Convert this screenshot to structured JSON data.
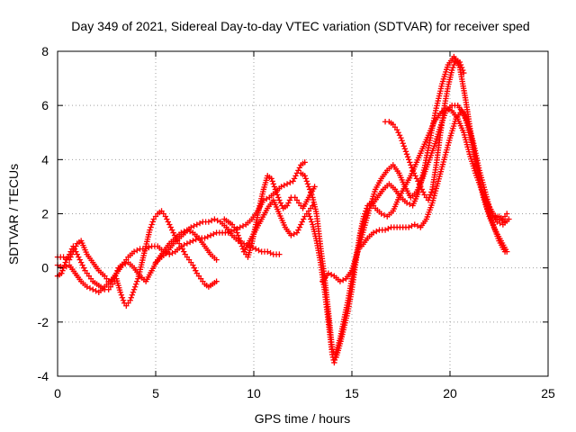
{
  "chart_data": {
    "type": "scatter",
    "title": "Day 349 of 2021, Sidereal Day-to-day VTEC variation (SDTVAR) for receiver sped",
    "xlabel": "GPS time / hours",
    "ylabel": "SDTVAR / TECUs",
    "xlim": [
      0,
      25
    ],
    "ylim": [
      -4,
      8
    ],
    "xticks": [
      0,
      5,
      10,
      15,
      20,
      25
    ],
    "yticks": [
      -4,
      -2,
      0,
      2,
      4,
      6,
      8
    ],
    "grid": true,
    "marker": "plus",
    "color": "#ff0000",
    "series": [
      {
        "x": [
          0.0,
          0.3,
          0.6,
          0.8,
          1.0,
          1.2,
          1.5,
          1.8,
          2.1,
          2.4,
          2.6,
          2.9,
          3.1,
          3.4,
          3.6,
          3.9,
          4.2,
          4.5,
          4.8,
          5.1,
          5.4,
          5.7,
          6.0,
          6.3,
          6.6,
          6.9,
          7.2,
          7.5,
          7.8,
          8.1,
          8.4,
          8.7,
          9.0,
          9.3,
          9.6,
          9.9,
          10.2,
          10.5,
          10.8,
          11.1,
          11.4,
          11.7,
          12.0,
          12.2,
          12.4,
          12.6
        ],
        "y": [
          0.4,
          0.4,
          0.3,
          0.6,
          0.9,
          1.0,
          0.5,
          0.2,
          -0.1,
          -0.3,
          -0.5,
          -0.4,
          0.0,
          0.2,
          0.4,
          0.6,
          0.7,
          0.7,
          0.8,
          0.8,
          0.6,
          0.5,
          0.6,
          0.8,
          0.9,
          1.0,
          1.1,
          1.1,
          1.2,
          1.3,
          1.3,
          1.3,
          1.4,
          1.5,
          1.6,
          1.8,
          2.1,
          2.5,
          2.6,
          2.8,
          3.0,
          3.1,
          3.2,
          3.5,
          3.8,
          3.9
        ]
      },
      {
        "x": [
          0.0,
          0.2,
          0.4,
          0.6,
          0.8,
          1.0,
          1.2,
          1.4,
          1.6,
          1.8,
          2.0,
          2.2,
          2.4,
          2.6,
          2.8,
          3.0,
          3.2,
          3.4,
          3.5,
          3.7,
          3.9,
          4.1,
          4.3,
          4.5,
          4.7,
          4.9,
          5.1,
          5.3,
          5.5,
          5.7,
          5.9,
          6.1,
          6.3,
          6.5,
          6.7,
          6.9,
          7.1,
          7.3,
          7.5,
          7.7,
          7.9,
          8.1
        ],
        "y": [
          -0.3,
          -0.2,
          0.2,
          0.5,
          0.8,
          0.5,
          0.2,
          -0.1,
          -0.3,
          -0.5,
          -0.6,
          -0.7,
          -0.8,
          -0.8,
          -0.6,
          -0.4,
          -0.9,
          -1.3,
          -1.4,
          -1.2,
          -0.8,
          -0.4,
          0.2,
          0.8,
          1.4,
          1.8,
          2.0,
          2.1,
          1.9,
          1.6,
          1.3,
          1.0,
          0.8,
          0.5,
          0.3,
          0.1,
          -0.2,
          -0.4,
          -0.6,
          -0.7,
          -0.6,
          -0.5
        ]
      },
      {
        "x": [
          0.0,
          0.3,
          0.6,
          0.9,
          1.2,
          1.5,
          1.8,
          2.1,
          2.4,
          2.7,
          3.0,
          3.3,
          3.6,
          3.9,
          4.2,
          4.5,
          4.8,
          5.1,
          5.4,
          5.7,
          6.0,
          6.3,
          6.6,
          6.9,
          7.2,
          7.5,
          7.8,
          8.1
        ],
        "y": [
          0.1,
          0.0,
          0.1,
          -0.2,
          -0.5,
          -0.7,
          -0.8,
          -0.9,
          -0.7,
          -0.5,
          -0.2,
          0.1,
          0.2,
          0.0,
          -0.3,
          -0.5,
          -0.1,
          0.3,
          0.6,
          0.9,
          1.1,
          1.3,
          1.4,
          1.3,
          1.1,
          0.8,
          0.5,
          0.3
        ]
      },
      {
        "x": [
          5.0,
          5.3,
          5.6,
          5.9,
          6.2,
          6.5,
          6.8,
          7.1,
          7.4,
          7.7,
          8.0,
          8.3,
          8.6,
          8.9,
          9.2,
          9.5,
          9.8,
          10.1,
          10.4,
          10.7,
          11.0,
          11.3
        ],
        "y": [
          0.2,
          0.4,
          0.6,
          0.9,
          1.1,
          1.3,
          1.5,
          1.6,
          1.7,
          1.7,
          1.8,
          1.7,
          1.5,
          1.2,
          1.0,
          0.9,
          0.8,
          0.7,
          0.6,
          0.6,
          0.5,
          0.5
        ]
      },
      {
        "x": [
          8.5,
          8.7,
          8.9,
          9.1,
          9.3,
          9.5,
          9.7,
          9.9,
          10.1,
          10.3,
          10.5,
          10.7,
          10.9,
          11.1,
          11.3,
          11.5,
          11.7,
          11.9,
          12.1,
          12.3,
          12.5,
          12.8,
          13.1
        ],
        "y": [
          1.8,
          1.7,
          1.6,
          1.4,
          1.0,
          0.6,
          0.4,
          0.9,
          1.6,
          2.3,
          2.9,
          3.4,
          3.3,
          2.9,
          2.5,
          2.2,
          2.3,
          2.6,
          2.6,
          2.4,
          2.2,
          2.6,
          3.0
        ]
      },
      {
        "x": [
          9.5,
          9.8,
          10.1,
          10.4,
          10.7,
          11.0,
          11.3,
          11.6,
          11.9,
          12.2,
          12.4,
          12.6,
          12.8,
          13.0
        ],
        "y": [
          0.6,
          1.0,
          1.4,
          1.8,
          2.2,
          2.5,
          2.0,
          1.5,
          1.2,
          1.3,
          1.6,
          1.9,
          2.1,
          2.3
        ]
      },
      {
        "x": [
          12.4,
          12.6,
          12.8,
          13.0,
          13.2,
          13.4,
          13.6,
          13.8,
          14.0,
          14.2,
          14.4,
          14.6,
          14.8,
          15.0,
          15.2,
          15.4,
          15.6,
          15.8,
          16.0,
          16.2,
          16.5,
          16.8,
          17.1,
          17.4,
          17.7,
          18.0,
          18.3,
          18.6,
          18.9,
          19.2,
          19.5,
          19.8,
          20.1,
          20.4,
          20.7,
          21.0,
          21.3,
          21.6,
          21.9,
          22.2,
          22.5,
          22.8
        ],
        "y": [
          3.5,
          3.4,
          3.0,
          2.6,
          2.0,
          0.8,
          -0.3,
          -1.6,
          -3.0,
          -3.3,
          -2.8,
          -2.2,
          -1.6,
          -0.8,
          0.2,
          1.2,
          1.9,
          2.3,
          2.4,
          2.2,
          2.0,
          1.9,
          2.1,
          2.6,
          3.0,
          3.4,
          3.9,
          4.4,
          4.9,
          5.4,
          5.7,
          5.9,
          5.8,
          5.5,
          5.0,
          4.2,
          3.5,
          2.9,
          2.4,
          2.0,
          1.8,
          1.7
        ]
      },
      {
        "x": [
          12.8,
          13.0,
          13.2,
          13.4,
          13.6,
          13.8,
          14.0,
          14.1,
          14.2,
          14.4,
          14.6,
          14.8,
          15.0,
          15.2,
          15.4,
          15.6,
          15.8,
          16.0,
          16.3,
          16.6,
          16.9,
          17.2,
          17.5,
          17.8,
          18.1,
          18.4,
          18.7,
          19.0,
          19.3,
          19.6,
          19.9,
          20.2,
          20.5,
          20.8,
          21.1,
          21.4,
          21.7,
          22.0,
          22.3,
          22.6,
          22.9
        ],
        "y": [
          2.0,
          1.6,
          1.0,
          0.2,
          -0.8,
          -2.0,
          -3.2,
          -3.5,
          -3.1,
          -2.6,
          -1.9,
          -1.2,
          -0.4,
          0.4,
          1.1,
          1.7,
          2.1,
          2.3,
          2.6,
          2.9,
          3.1,
          2.9,
          2.6,
          2.4,
          2.3,
          2.8,
          3.7,
          4.8,
          5.9,
          6.8,
          7.5,
          7.8,
          7.4,
          6.2,
          4.8,
          3.6,
          2.6,
          1.9,
          1.4,
          1.0,
          0.6
        ]
      },
      {
        "x": [
          13.5,
          13.8,
          14.1,
          14.4,
          14.7,
          15.0,
          15.3,
          15.6,
          15.9,
          16.2,
          16.5,
          16.8,
          17.1,
          17.4,
          17.7,
          18.0,
          18.3,
          18.6,
          18.9,
          19.2,
          19.5,
          19.8,
          20.1,
          20.4,
          20.7,
          21.0,
          21.3,
          21.6,
          21.9,
          22.2,
          22.5,
          22.8
        ],
        "y": [
          -0.5,
          -0.2,
          -0.3,
          -0.5,
          -0.4,
          -0.1,
          0.6,
          1.4,
          2.2,
          2.9,
          3.3,
          3.6,
          3.8,
          3.5,
          3.0,
          2.6,
          2.8,
          3.3,
          3.9,
          4.5,
          5.2,
          5.8,
          6.0,
          6.0,
          5.7,
          5.0,
          4.0,
          3.0,
          2.2,
          1.6,
          1.0,
          0.6
        ]
      },
      {
        "x": [
          15.5,
          15.8,
          16.1,
          16.4,
          16.7,
          17.0,
          17.3,
          17.6,
          17.9,
          18.2,
          18.5,
          18.8,
          19.1,
          19.4,
          19.7,
          20.0,
          20.3,
          20.6,
          20.9,
          21.2,
          21.5,
          21.8,
          22.1,
          22.4,
          22.7,
          23.0
        ],
        "y": [
          0.8,
          1.1,
          1.3,
          1.4,
          1.4,
          1.5,
          1.5,
          1.5,
          1.5,
          1.6,
          1.5,
          1.8,
          2.4,
          3.2,
          4.0,
          4.8,
          5.5,
          5.8,
          5.4,
          4.6,
          3.6,
          2.8,
          2.0,
          1.7,
          1.6,
          1.8
        ]
      },
      {
        "x": [
          16.7,
          16.9,
          17.1,
          17.3,
          17.5,
          17.7,
          17.9,
          18.1,
          18.3,
          18.5,
          18.7,
          18.9,
          19.1,
          19.3,
          19.5,
          19.7,
          19.9,
          20.1,
          20.3,
          20.5,
          20.7
        ],
        "y": [
          5.4,
          5.4,
          5.3,
          5.1,
          4.8,
          4.4,
          4.0,
          3.6,
          3.3,
          3.0,
          2.7,
          2.5,
          2.9,
          3.8,
          4.9,
          5.9,
          6.7,
          7.3,
          7.7,
          7.6,
          7.2
        ]
      },
      {
        "x": [
          22.3,
          22.5,
          22.7,
          22.9
        ],
        "y": [
          1.9,
          1.9,
          1.8,
          2.0
        ]
      }
    ]
  }
}
